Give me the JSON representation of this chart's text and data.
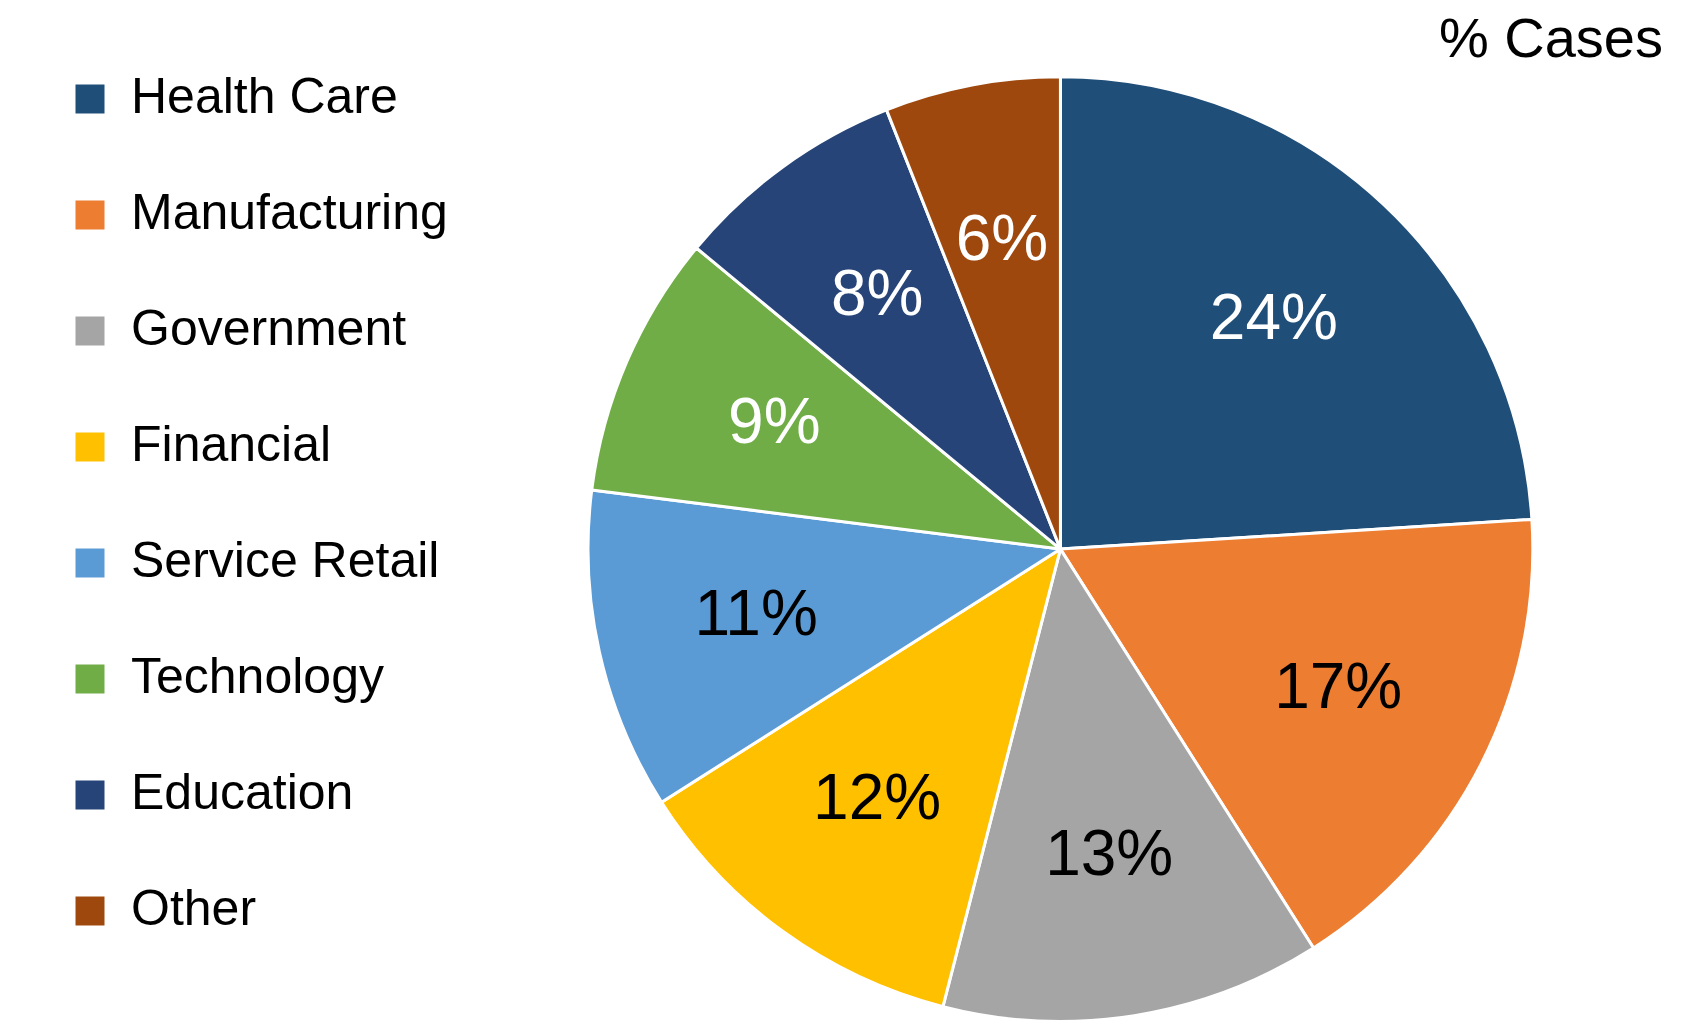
{
  "chart_data": {
    "type": "pie",
    "title": "% Cases",
    "categories": [
      "Health Care",
      "Manufacturing",
      "Government",
      "Financial",
      "Service Retail",
      "Technology",
      "Education",
      "Other"
    ],
    "values": [
      24,
      17,
      13,
      12,
      11,
      9,
      8,
      6
    ],
    "colors": [
      "#1f4e79",
      "#ed7d31",
      "#a5a5a5",
      "#ffc000",
      "#5b9bd5",
      "#70ad47",
      "#264478",
      "#9e480e"
    ],
    "value_labels": [
      "24%",
      "17%",
      "13%",
      "12%",
      "11%",
      "9%",
      "8%",
      "6%"
    ],
    "legend": "left"
  }
}
